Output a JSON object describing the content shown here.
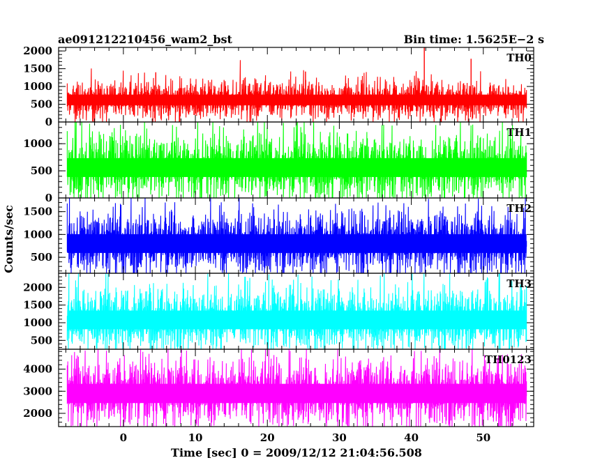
{
  "chart_data": {
    "type": "line",
    "title_left": "ae091212210456_wam2_bst",
    "title_right": "Bin time: 1.5625E−2 s",
    "xlabel": "Time [sec] 0 = 2009/12/12 21:04:56.508",
    "ylabel": "Counts/sec",
    "xlim": [
      -9,
      57
    ],
    "x_data_range": [
      -7.8,
      56.0
    ],
    "bin_time_s": 0.015625,
    "x_ticks": [
      0,
      10,
      20,
      30,
      40,
      50
    ],
    "x_tick_labels": [
      "0",
      "10",
      "20",
      "30",
      "40",
      "50"
    ],
    "grid": false,
    "series": [
      {
        "name": "TH0",
        "color": "#ff0000",
        "ylim": [
          0,
          2100
        ],
        "y_ticks": [
          0,
          500,
          1000,
          1500,
          2000
        ],
        "y_tick_labels": [
          "0",
          "500",
          "1000",
          "1500",
          "2000"
        ],
        "mean": 620,
        "min_typical": 100,
        "max_typical": 1300,
        "spikes": [
          [
            41.8,
            2100
          ],
          [
            48.3,
            1780
          ],
          [
            25.3,
            1420
          ],
          [
            4.5,
            1400
          ]
        ]
      },
      {
        "name": "TH1",
        "color": "#00ff00",
        "ylim": [
          0,
          1400
        ],
        "y_ticks": [
          0,
          500,
          1000
        ],
        "y_tick_labels": [
          "0",
          "500",
          "1000"
        ],
        "mean": 560,
        "min_typical": 20,
        "max_typical": 1400,
        "spikes": []
      },
      {
        "name": "TH2",
        "color": "#0000ff",
        "ylim": [
          150,
          1800
        ],
        "y_ticks": [
          500,
          1000,
          1500
        ],
        "y_tick_labels": [
          "500",
          "1000",
          "1500"
        ],
        "mean": 800,
        "min_typical": 170,
        "max_typical": 1800,
        "spikes": []
      },
      {
        "name": "TH3",
        "color": "#00ffff",
        "ylim": [
          250,
          2400
        ],
        "y_ticks": [
          500,
          1000,
          1500,
          2000
        ],
        "y_tick_labels": [
          "500",
          "1000",
          "1500",
          "2000"
        ],
        "mean": 1080,
        "min_typical": 300,
        "max_typical": 2400,
        "spikes": []
      },
      {
        "name": "TH0123",
        "color": "#ff00ff",
        "ylim": [
          1400,
          4900
        ],
        "y_ticks": [
          2000,
          3000,
          4000
        ],
        "y_tick_labels": [
          "2000",
          "3000",
          "4000"
        ],
        "mean": 2900,
        "min_typical": 1450,
        "max_typical": 4900,
        "spikes": []
      }
    ]
  }
}
